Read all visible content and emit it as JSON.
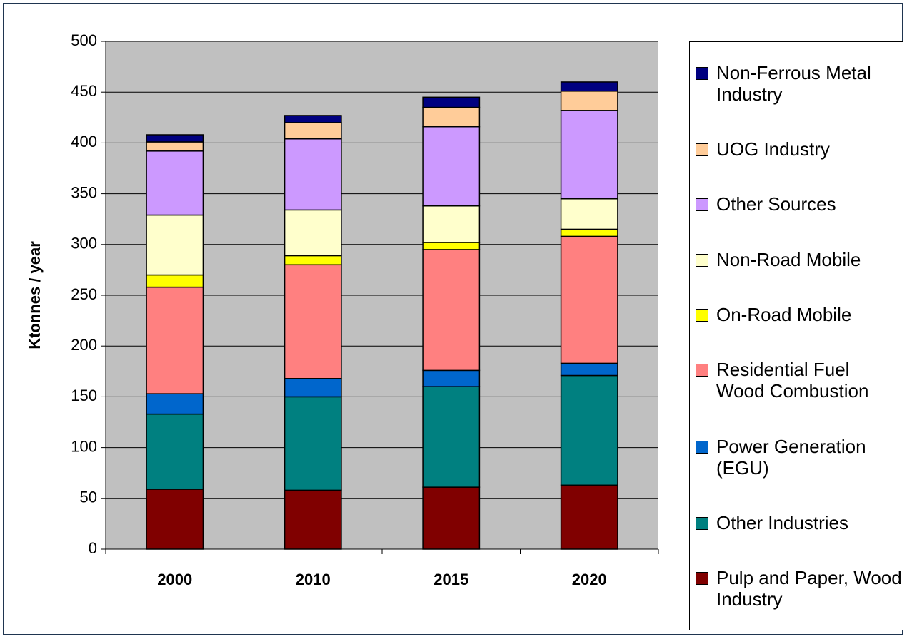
{
  "chart_data": {
    "type": "stacked-bar",
    "y_label": "Ktonnes / year",
    "categories": [
      "2000",
      "2010",
      "2015",
      "2020"
    ],
    "ylim": [
      0,
      500
    ],
    "yticks": [
      0,
      50,
      100,
      150,
      200,
      250,
      300,
      350,
      400,
      450,
      500
    ],
    "grid": true,
    "series": [
      {
        "name": "Pulp and Paper, Wood Industry",
        "color": "#800000",
        "values": [
          59,
          58,
          61,
          63
        ]
      },
      {
        "name": "Other Industries",
        "color": "#008080",
        "values": [
          74,
          92,
          99,
          108
        ]
      },
      {
        "name": "Power Generation (EGU)",
        "color": "#0066cc",
        "values": [
          20,
          18,
          16,
          12
        ]
      },
      {
        "name": "Residential Fuel Wood Combustion",
        "color": "#ff8080",
        "values": [
          105,
          112,
          119,
          125
        ]
      },
      {
        "name": "On-Road Mobile",
        "color": "#ffff00",
        "values": [
          12,
          9,
          7,
          7
        ]
      },
      {
        "name": "Non-Road Mobile",
        "color": "#ffffcc",
        "values": [
          59,
          45,
          36,
          30
        ]
      },
      {
        "name": "Other Sources",
        "color": "#cc99ff",
        "values": [
          63,
          70,
          78,
          87
        ]
      },
      {
        "name": "UOG Industry",
        "color": "#ffcc99",
        "values": [
          9,
          16,
          19,
          19
        ]
      },
      {
        "name": "Non-Ferrous Metal Industry",
        "color": "#000080",
        "values": [
          7,
          7,
          10,
          9
        ]
      }
    ]
  }
}
